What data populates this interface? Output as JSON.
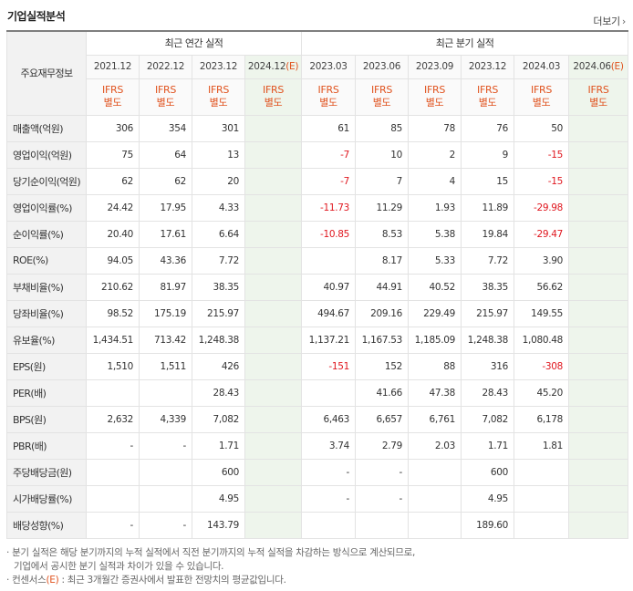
{
  "header": {
    "title": "기업실적분석",
    "more_label": "더보기",
    "more_icon": "chevron-right-icon"
  },
  "table": {
    "corner_label": "주요재무정보",
    "group_annual": "최근 연간 실적",
    "group_quarter": "최근 분기 실적",
    "annual_dates": [
      "2021.12",
      "2022.12",
      "2023.12",
      "2024.12"
    ],
    "quarter_dates": [
      "2023.03",
      "2023.06",
      "2023.09",
      "2023.12",
      "2024.03",
      "2024.06"
    ],
    "estimate_suffix": "(E)",
    "ifrs_label_line1": "IFRS",
    "ifrs_label_line2": "별도",
    "rows": [
      {
        "label": "매출액(억원)",
        "annual": [
          "306",
          "354",
          "301",
          ""
        ],
        "quarter": [
          "61",
          "85",
          "78",
          "76",
          "50",
          ""
        ]
      },
      {
        "label": "영업이익(억원)",
        "annual": [
          "75",
          "64",
          "13",
          ""
        ],
        "quarter": [
          "-7",
          "10",
          "2",
          "9",
          "-15",
          ""
        ]
      },
      {
        "label": "당기순이익(억원)",
        "annual": [
          "62",
          "62",
          "20",
          ""
        ],
        "quarter": [
          "-7",
          "7",
          "4",
          "15",
          "-15",
          ""
        ]
      },
      {
        "label": "영업이익률(%)",
        "annual": [
          "24.42",
          "17.95",
          "4.33",
          ""
        ],
        "quarter": [
          "-11.73",
          "11.29",
          "1.93",
          "11.89",
          "-29.98",
          ""
        ]
      },
      {
        "label": "순이익률(%)",
        "annual": [
          "20.40",
          "17.61",
          "6.64",
          ""
        ],
        "quarter": [
          "-10.85",
          "8.53",
          "5.38",
          "19.84",
          "-29.47",
          ""
        ]
      },
      {
        "label": "ROE(%)",
        "annual": [
          "94.05",
          "43.36",
          "7.72",
          ""
        ],
        "quarter": [
          "",
          "8.17",
          "5.33",
          "7.72",
          "3.90",
          ""
        ]
      },
      {
        "label": "부채비율(%)",
        "annual": [
          "210.62",
          "81.97",
          "38.35",
          ""
        ],
        "quarter": [
          "40.97",
          "44.91",
          "40.52",
          "38.35",
          "56.62",
          ""
        ]
      },
      {
        "label": "당좌비율(%)",
        "annual": [
          "98.52",
          "175.19",
          "215.97",
          ""
        ],
        "quarter": [
          "494.67",
          "209.16",
          "229.49",
          "215.97",
          "149.55",
          ""
        ]
      },
      {
        "label": "유보율(%)",
        "annual": [
          "1,434.51",
          "713.42",
          "1,248.38",
          ""
        ],
        "quarter": [
          "1,137.21",
          "1,167.53",
          "1,185.09",
          "1,248.38",
          "1,080.48",
          ""
        ]
      },
      {
        "label": "EPS(원)",
        "annual": [
          "1,510",
          "1,511",
          "426",
          ""
        ],
        "quarter": [
          "-151",
          "152",
          "88",
          "316",
          "-308",
          ""
        ]
      },
      {
        "label": "PER(배)",
        "annual": [
          "",
          "",
          "28.43",
          ""
        ],
        "quarter": [
          "",
          "41.66",
          "47.38",
          "28.43",
          "45.20",
          ""
        ]
      },
      {
        "label": "BPS(원)",
        "annual": [
          "2,632",
          "4,339",
          "7,082",
          ""
        ],
        "quarter": [
          "6,463",
          "6,657",
          "6,761",
          "7,082",
          "6,178",
          ""
        ]
      },
      {
        "label": "PBR(배)",
        "annual": [
          "-",
          "-",
          "1.71",
          ""
        ],
        "quarter": [
          "3.74",
          "2.79",
          "2.03",
          "1.71",
          "1.81",
          ""
        ]
      },
      {
        "label": "주당배당금(원)",
        "annual": [
          "",
          "",
          "600",
          ""
        ],
        "quarter": [
          "-",
          "-",
          "",
          "600",
          "",
          ""
        ]
      },
      {
        "label": "시가배당률(%)",
        "annual": [
          "",
          "",
          "4.95",
          ""
        ],
        "quarter": [
          "-",
          "-",
          "",
          "4.95",
          "",
          ""
        ]
      },
      {
        "label": "배당성향(%)",
        "annual": [
          "-",
          "-",
          "143.79",
          ""
        ],
        "quarter": [
          "",
          "",
          "",
          "189.60",
          "",
          ""
        ]
      }
    ]
  },
  "notes": {
    "line1": "· 분기 실적은 해당 분기까지의 누적 실적에서 직전 분기까지의 누적 실적을 차감하는 방식으로 계산되므로,",
    "line2": "기업에서 공시한 분기 실적과 차이가 있을 수 있습니다.",
    "line3_prefix": "· 컨센서스",
    "line3_mark": "(E)",
    "line3_rest": " : 최근 3개월간 증권사에서 발표한 전망치의 평균값입니다."
  },
  "colors": {
    "ifrs_orange": "#e0531f",
    "negative_red": "#e0171f",
    "estimate_bg": "#eef5ec",
    "label_bg": "#f2f2f2"
  }
}
